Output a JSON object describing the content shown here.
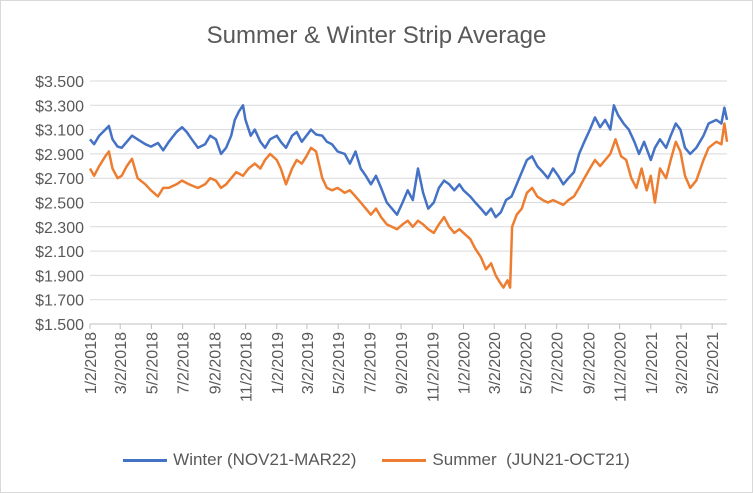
{
  "chart_data": {
    "type": "line",
    "title": "Summer & Winter Strip Average",
    "xlabel": "",
    "ylabel": "",
    "ylim": [
      1.5,
      3.5
    ],
    "grid": "horizontal",
    "legend_position": "bottom",
    "y_ticks": [
      "$1.500",
      "$1.700",
      "$1.900",
      "$2.100",
      "$2.300",
      "$2.500",
      "$2.700",
      "$2.900",
      "$3.100",
      "$3.300",
      "$3.500"
    ],
    "x_ticks": [
      "1/2/2018",
      "3/2/2018",
      "5/2/2018",
      "7/2/2018",
      "9/2/2018",
      "11/2/2018",
      "1/2/2019",
      "3/2/2019",
      "5/2/2019",
      "7/2/2019",
      "9/2/2019",
      "11/2/2019",
      "1/2/2020",
      "3/2/2020",
      "5/2/2020",
      "7/2/2020",
      "9/2/2020",
      "11/2/2020",
      "1/2/2021",
      "3/2/2021",
      "5/2/2021"
    ],
    "series": [
      {
        "name": "Winter (NOV21-MAR22)",
        "color": "#4472C4",
        "points": [
          [
            "2018-01-02",
            3.02
          ],
          [
            "2018-01-10",
            2.98
          ],
          [
            "2018-01-20",
            3.05
          ],
          [
            "2018-02-01",
            3.1
          ],
          [
            "2018-02-08",
            3.13
          ],
          [
            "2018-02-15",
            3.02
          ],
          [
            "2018-02-25",
            2.96
          ],
          [
            "2018-03-05",
            2.95
          ],
          [
            "2018-03-15",
            3.0
          ],
          [
            "2018-03-25",
            3.05
          ],
          [
            "2018-04-05",
            3.02
          ],
          [
            "2018-04-20",
            2.98
          ],
          [
            "2018-05-01",
            2.96
          ],
          [
            "2018-05-15",
            2.99
          ],
          [
            "2018-05-25",
            2.93
          ],
          [
            "2018-06-05",
            3.0
          ],
          [
            "2018-06-20",
            3.08
          ],
          [
            "2018-07-01",
            3.12
          ],
          [
            "2018-07-10",
            3.08
          ],
          [
            "2018-07-20",
            3.02
          ],
          [
            "2018-08-01",
            2.95
          ],
          [
            "2018-08-15",
            2.98
          ],
          [
            "2018-08-25",
            3.05
          ],
          [
            "2018-09-05",
            3.02
          ],
          [
            "2018-09-15",
            2.9
          ],
          [
            "2018-09-25",
            2.95
          ],
          [
            "2018-10-05",
            3.05
          ],
          [
            "2018-10-12",
            3.18
          ],
          [
            "2018-10-20",
            3.25
          ],
          [
            "2018-10-28",
            3.3
          ],
          [
            "2018-11-02",
            3.18
          ],
          [
            "2018-11-12",
            3.05
          ],
          [
            "2018-11-20",
            3.1
          ],
          [
            "2018-12-01",
            3.0
          ],
          [
            "2018-12-10",
            2.95
          ],
          [
            "2018-12-20",
            3.02
          ],
          [
            "2019-01-02",
            3.05
          ],
          [
            "2019-01-10",
            3.0
          ],
          [
            "2019-01-20",
            2.95
          ],
          [
            "2019-02-01",
            3.05
          ],
          [
            "2019-02-10",
            3.08
          ],
          [
            "2019-02-20",
            3.0
          ],
          [
            "2019-03-01",
            3.05
          ],
          [
            "2019-03-10",
            3.1
          ],
          [
            "2019-03-20",
            3.06
          ],
          [
            "2019-04-01",
            3.05
          ],
          [
            "2019-04-10",
            3.0
          ],
          [
            "2019-04-20",
            2.98
          ],
          [
            "2019-05-01",
            2.92
          ],
          [
            "2019-05-15",
            2.9
          ],
          [
            "2019-05-25",
            2.82
          ],
          [
            "2019-06-05",
            2.92
          ],
          [
            "2019-06-15",
            2.78
          ],
          [
            "2019-06-25",
            2.72
          ],
          [
            "2019-07-05",
            2.65
          ],
          [
            "2019-07-15",
            2.72
          ],
          [
            "2019-07-25",
            2.62
          ],
          [
            "2019-08-05",
            2.5
          ],
          [
            "2019-08-15",
            2.45
          ],
          [
            "2019-08-25",
            2.4
          ],
          [
            "2019-09-05",
            2.5
          ],
          [
            "2019-09-15",
            2.6
          ],
          [
            "2019-09-25",
            2.52
          ],
          [
            "2019-10-05",
            2.78
          ],
          [
            "2019-10-15",
            2.58
          ],
          [
            "2019-10-25",
            2.45
          ],
          [
            "2019-11-05",
            2.5
          ],
          [
            "2019-11-15",
            2.62
          ],
          [
            "2019-11-25",
            2.68
          ],
          [
            "2019-12-05",
            2.65
          ],
          [
            "2019-12-15",
            2.6
          ],
          [
            "2019-12-25",
            2.65
          ],
          [
            "2020-01-02",
            2.6
          ],
          [
            "2020-01-15",
            2.55
          ],
          [
            "2020-01-25",
            2.5
          ],
          [
            "2020-02-05",
            2.45
          ],
          [
            "2020-02-15",
            2.4
          ],
          [
            "2020-02-25",
            2.45
          ],
          [
            "2020-03-05",
            2.38
          ],
          [
            "2020-03-15",
            2.42
          ],
          [
            "2020-03-25",
            2.52
          ],
          [
            "2020-04-05",
            2.55
          ],
          [
            "2020-04-15",
            2.65
          ],
          [
            "2020-04-25",
            2.75
          ],
          [
            "2020-05-05",
            2.85
          ],
          [
            "2020-05-15",
            2.88
          ],
          [
            "2020-05-25",
            2.8
          ],
          [
            "2020-06-05",
            2.75
          ],
          [
            "2020-06-15",
            2.7
          ],
          [
            "2020-06-25",
            2.78
          ],
          [
            "2020-07-05",
            2.72
          ],
          [
            "2020-07-15",
            2.65
          ],
          [
            "2020-07-25",
            2.7
          ],
          [
            "2020-08-05",
            2.75
          ],
          [
            "2020-08-15",
            2.9
          ],
          [
            "2020-08-25",
            3.0
          ],
          [
            "2020-09-05",
            3.1
          ],
          [
            "2020-09-15",
            3.2
          ],
          [
            "2020-09-25",
            3.12
          ],
          [
            "2020-10-05",
            3.18
          ],
          [
            "2020-10-15",
            3.1
          ],
          [
            "2020-10-22",
            3.3
          ],
          [
            "2020-10-30",
            3.22
          ],
          [
            "2020-11-10",
            3.15
          ],
          [
            "2020-11-20",
            3.1
          ],
          [
            "2020-12-01",
            3.0
          ],
          [
            "2020-12-10",
            2.9
          ],
          [
            "2020-12-20",
            3.0
          ],
          [
            "2021-01-02",
            2.85
          ],
          [
            "2021-01-10",
            2.95
          ],
          [
            "2021-01-20",
            3.02
          ],
          [
            "2021-02-01",
            2.95
          ],
          [
            "2021-02-10",
            3.05
          ],
          [
            "2021-02-20",
            3.15
          ],
          [
            "2021-03-01",
            3.1
          ],
          [
            "2021-03-10",
            2.95
          ],
          [
            "2021-03-20",
            2.9
          ],
          [
            "2021-04-01",
            2.95
          ],
          [
            "2021-04-15",
            3.05
          ],
          [
            "2021-04-25",
            3.15
          ],
          [
            "2021-05-10",
            3.18
          ],
          [
            "2021-05-20",
            3.15
          ],
          [
            "2021-05-26",
            3.28
          ],
          [
            "2021-05-31",
            3.18
          ]
        ]
      },
      {
        "name": "Summer  (JUN21-OCT21)",
        "color": "#ED7D31",
        "points": [
          [
            "2018-01-02",
            2.78
          ],
          [
            "2018-01-10",
            2.72
          ],
          [
            "2018-01-20",
            2.8
          ],
          [
            "2018-02-01",
            2.88
          ],
          [
            "2018-02-08",
            2.92
          ],
          [
            "2018-02-15",
            2.78
          ],
          [
            "2018-02-25",
            2.7
          ],
          [
            "2018-03-05",
            2.72
          ],
          [
            "2018-03-15",
            2.8
          ],
          [
            "2018-03-25",
            2.86
          ],
          [
            "2018-04-05",
            2.7
          ],
          [
            "2018-04-20",
            2.65
          ],
          [
            "2018-05-01",
            2.6
          ],
          [
            "2018-05-15",
            2.55
          ],
          [
            "2018-05-25",
            2.62
          ],
          [
            "2018-06-05",
            2.62
          ],
          [
            "2018-06-20",
            2.65
          ],
          [
            "2018-07-01",
            2.68
          ],
          [
            "2018-07-10",
            2.66
          ],
          [
            "2018-07-20",
            2.64
          ],
          [
            "2018-08-01",
            2.62
          ],
          [
            "2018-08-15",
            2.65
          ],
          [
            "2018-08-25",
            2.7
          ],
          [
            "2018-09-05",
            2.68
          ],
          [
            "2018-09-15",
            2.62
          ],
          [
            "2018-09-25",
            2.65
          ],
          [
            "2018-10-05",
            2.7
          ],
          [
            "2018-10-15",
            2.75
          ],
          [
            "2018-10-28",
            2.72
          ],
          [
            "2018-11-08",
            2.78
          ],
          [
            "2018-11-20",
            2.82
          ],
          [
            "2018-12-01",
            2.78
          ],
          [
            "2018-12-10",
            2.85
          ],
          [
            "2018-12-20",
            2.9
          ],
          [
            "2019-01-02",
            2.85
          ],
          [
            "2019-01-10",
            2.78
          ],
          [
            "2019-01-20",
            2.65
          ],
          [
            "2019-02-01",
            2.78
          ],
          [
            "2019-02-10",
            2.85
          ],
          [
            "2019-02-20",
            2.82
          ],
          [
            "2019-03-01",
            2.88
          ],
          [
            "2019-03-10",
            2.95
          ],
          [
            "2019-03-20",
            2.92
          ],
          [
            "2019-04-01",
            2.7
          ],
          [
            "2019-04-10",
            2.62
          ],
          [
            "2019-04-20",
            2.6
          ],
          [
            "2019-05-01",
            2.62
          ],
          [
            "2019-05-15",
            2.58
          ],
          [
            "2019-05-25",
            2.6
          ],
          [
            "2019-06-05",
            2.55
          ],
          [
            "2019-06-15",
            2.5
          ],
          [
            "2019-06-25",
            2.45
          ],
          [
            "2019-07-05",
            2.4
          ],
          [
            "2019-07-15",
            2.45
          ],
          [
            "2019-07-25",
            2.38
          ],
          [
            "2019-08-05",
            2.32
          ],
          [
            "2019-08-15",
            2.3
          ],
          [
            "2019-08-25",
            2.28
          ],
          [
            "2019-09-05",
            2.32
          ],
          [
            "2019-09-15",
            2.35
          ],
          [
            "2019-09-25",
            2.3
          ],
          [
            "2019-10-05",
            2.35
          ],
          [
            "2019-10-15",
            2.32
          ],
          [
            "2019-10-25",
            2.28
          ],
          [
            "2019-11-05",
            2.25
          ],
          [
            "2019-11-15",
            2.32
          ],
          [
            "2019-11-25",
            2.38
          ],
          [
            "2019-12-05",
            2.3
          ],
          [
            "2019-12-15",
            2.25
          ],
          [
            "2019-12-25",
            2.28
          ],
          [
            "2020-01-02",
            2.25
          ],
          [
            "2020-01-15",
            2.2
          ],
          [
            "2020-01-25",
            2.12
          ],
          [
            "2020-02-05",
            2.05
          ],
          [
            "2020-02-15",
            1.95
          ],
          [
            "2020-02-25",
            2.0
          ],
          [
            "2020-03-05",
            1.9
          ],
          [
            "2020-03-12",
            1.85
          ],
          [
            "2020-03-20",
            1.8
          ],
          [
            "2020-03-28",
            1.86
          ],
          [
            "2020-04-02",
            1.8
          ],
          [
            "2020-04-06",
            2.3
          ],
          [
            "2020-04-15",
            2.4
          ],
          [
            "2020-04-25",
            2.45
          ],
          [
            "2020-05-05",
            2.58
          ],
          [
            "2020-05-15",
            2.62
          ],
          [
            "2020-05-25",
            2.55
          ],
          [
            "2020-06-05",
            2.52
          ],
          [
            "2020-06-15",
            2.5
          ],
          [
            "2020-06-25",
            2.52
          ],
          [
            "2020-07-05",
            2.5
          ],
          [
            "2020-07-15",
            2.48
          ],
          [
            "2020-07-25",
            2.52
          ],
          [
            "2020-08-05",
            2.55
          ],
          [
            "2020-08-15",
            2.62
          ],
          [
            "2020-08-25",
            2.7
          ],
          [
            "2020-09-05",
            2.78
          ],
          [
            "2020-09-15",
            2.85
          ],
          [
            "2020-09-25",
            2.8
          ],
          [
            "2020-10-05",
            2.85
          ],
          [
            "2020-10-15",
            2.9
          ],
          [
            "2020-10-25",
            3.02
          ],
          [
            "2020-11-05",
            2.88
          ],
          [
            "2020-11-15",
            2.85
          ],
          [
            "2020-11-25",
            2.7
          ],
          [
            "2020-12-05",
            2.62
          ],
          [
            "2020-12-15",
            2.78
          ],
          [
            "2020-12-25",
            2.6
          ],
          [
            "2021-01-02",
            2.72
          ],
          [
            "2021-01-10",
            2.5
          ],
          [
            "2021-01-20",
            2.78
          ],
          [
            "2021-02-01",
            2.7
          ],
          [
            "2021-02-10",
            2.85
          ],
          [
            "2021-02-20",
            3.0
          ],
          [
            "2021-03-01",
            2.92
          ],
          [
            "2021-03-10",
            2.72
          ],
          [
            "2021-03-20",
            2.62
          ],
          [
            "2021-04-01",
            2.68
          ],
          [
            "2021-04-15",
            2.85
          ],
          [
            "2021-04-25",
            2.95
          ],
          [
            "2021-05-10",
            3.0
          ],
          [
            "2021-05-20",
            2.98
          ],
          [
            "2021-05-26",
            3.15
          ],
          [
            "2021-05-31",
            3.0
          ]
        ]
      }
    ]
  }
}
